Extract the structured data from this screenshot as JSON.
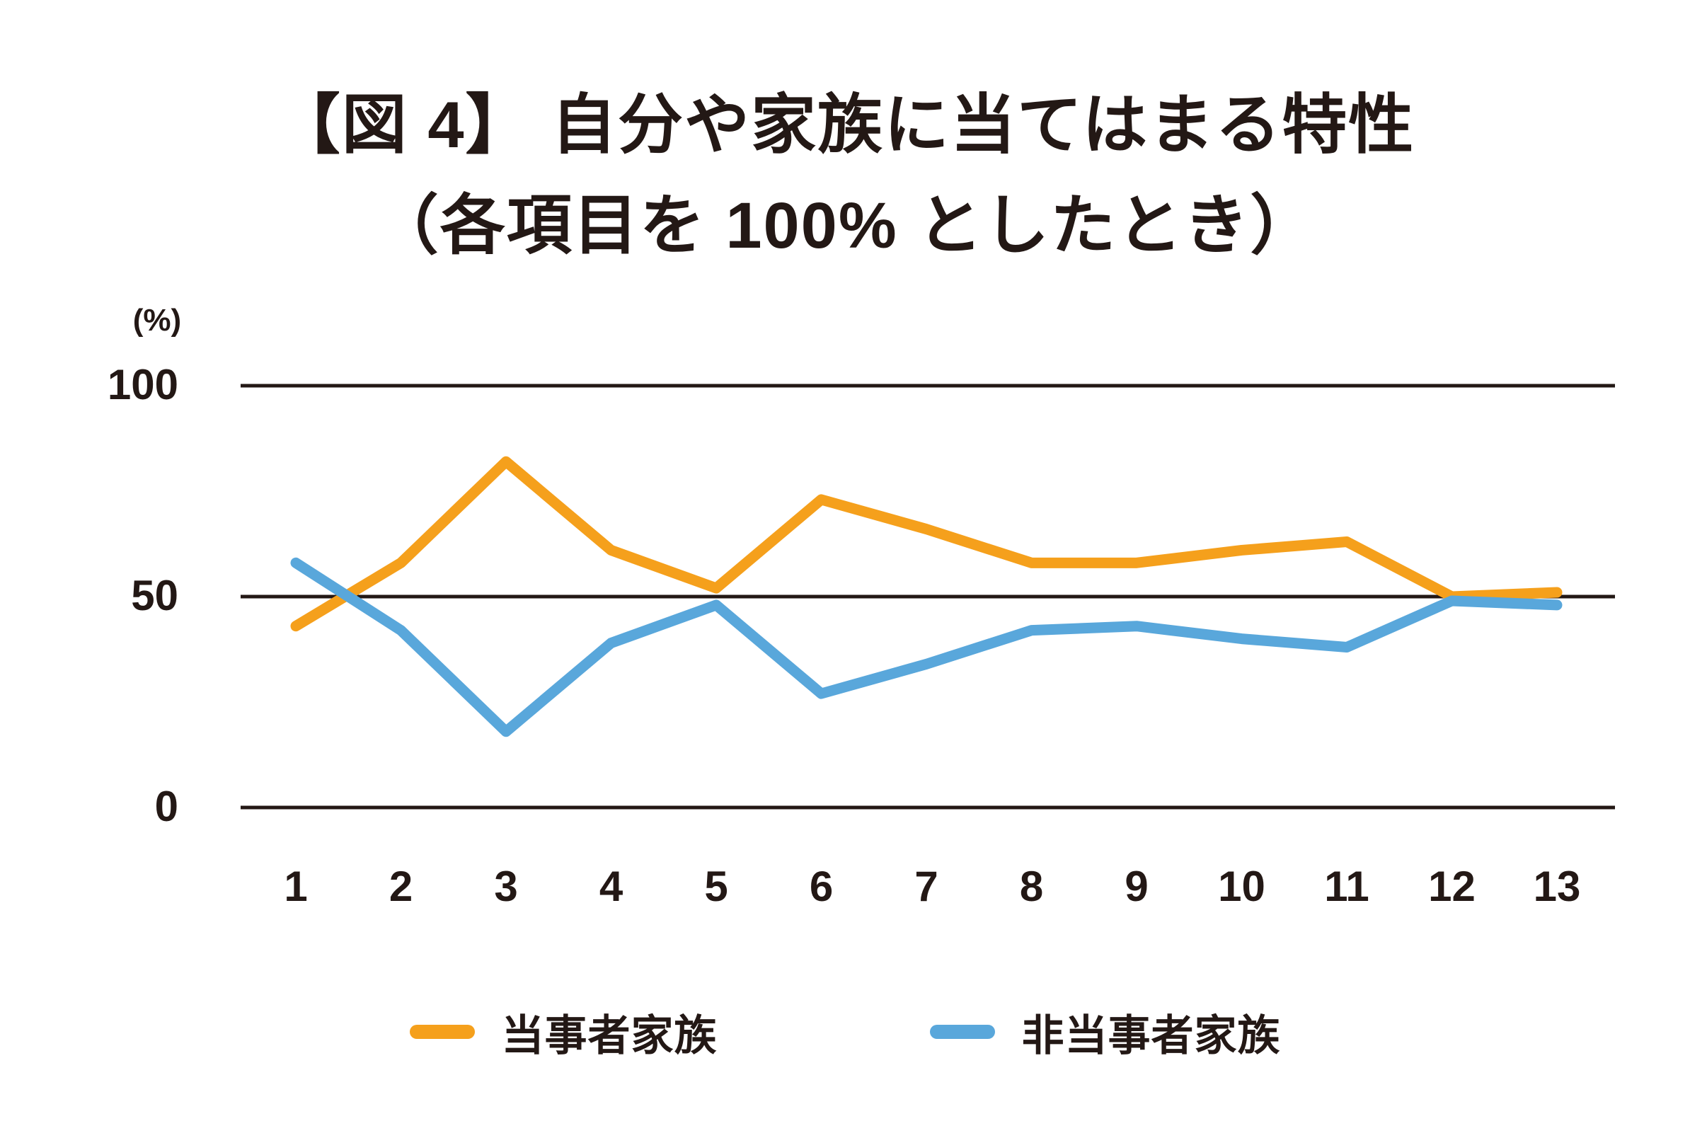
{
  "title": {
    "line1": "【図 4】 自分や家族に当てはまる特性",
    "line2": "（各項目を 100% としたとき）"
  },
  "colors": {
    "background": "#FFFFFF",
    "text": "#231815",
    "gridline": "#231815",
    "series_orange": "#F5A01C",
    "series_blue": "#59A7DB"
  },
  "chart_data": {
    "type": "line",
    "title": "【図 4】 自分や家族に当てはまる特性（各項目を 100% としたとき）",
    "y_unit_label": "(%)",
    "categories": [
      "1",
      "2",
      "3",
      "4",
      "5",
      "6",
      "7",
      "8",
      "9",
      "10",
      "11",
      "12",
      "13"
    ],
    "y_ticks": [
      100,
      50,
      0
    ],
    "y_tick_labels": [
      "100",
      "50",
      "0"
    ],
    "ylim": [
      0,
      100
    ],
    "grid": "horizontal-only",
    "legend_position": "bottom",
    "series": [
      {
        "name": "当事者家族",
        "color": "#F5A01C",
        "values": [
          43,
          58,
          82,
          61,
          52,
          73,
          66,
          58,
          58,
          61,
          63,
          50,
          51
        ]
      },
      {
        "name": "非当事者家族",
        "color": "#59A7DB",
        "values": [
          58,
          42,
          18,
          39,
          48,
          27,
          34,
          42,
          43,
          40,
          38,
          49,
          48
        ]
      }
    ]
  }
}
